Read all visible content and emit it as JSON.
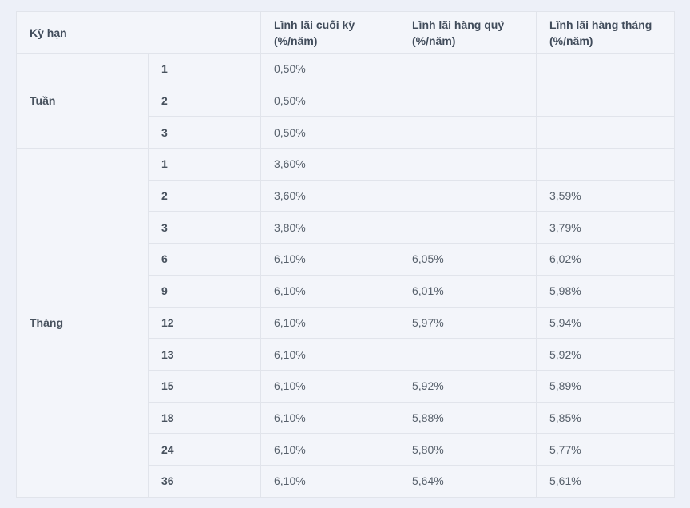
{
  "page": {
    "background_color": "#edf0f8",
    "table_background_color": "#f3f5fa",
    "border_color": "#e1e4eb"
  },
  "table": {
    "header": {
      "term": "Kỳ hạn",
      "end": "Lĩnh lãi cuối kỳ (%/năm)",
      "quarterly": "Lĩnh lãi hàng quý (%/năm)",
      "monthly": "Lĩnh lãi hàng tháng (%/năm)"
    },
    "groups": [
      {
        "label": "Tuần",
        "rows": [
          {
            "period": "1",
            "end": "0,50%",
            "quarterly": "",
            "monthly": ""
          },
          {
            "period": "2",
            "end": "0,50%",
            "quarterly": "",
            "monthly": ""
          },
          {
            "period": "3",
            "end": "0,50%",
            "quarterly": "",
            "monthly": ""
          }
        ]
      },
      {
        "label": "Tháng",
        "rows": [
          {
            "period": "1",
            "end": "3,60%",
            "quarterly": "",
            "monthly": ""
          },
          {
            "period": "2",
            "end": "3,60%",
            "quarterly": "",
            "monthly": "3,59%"
          },
          {
            "period": "3",
            "end": "3,80%",
            "quarterly": "",
            "monthly": "3,79%"
          },
          {
            "period": "6",
            "end": "6,10%",
            "quarterly": "6,05%",
            "monthly": "6,02%"
          },
          {
            "period": "9",
            "end": "6,10%",
            "quarterly": "6,01%",
            "monthly": "5,98%"
          },
          {
            "period": "12",
            "end": "6,10%",
            "quarterly": "5,97%",
            "monthly": "5,94%"
          },
          {
            "period": "13",
            "end": "6,10%",
            "quarterly": "",
            "monthly": "5,92%"
          },
          {
            "period": "15",
            "end": "6,10%",
            "quarterly": "5,92%",
            "monthly": "5,89%"
          },
          {
            "period": "18",
            "end": "6,10%",
            "quarterly": "5,88%",
            "monthly": "5,85%"
          },
          {
            "period": "24",
            "end": "6,10%",
            "quarterly": "5,80%",
            "monthly": "5,77%"
          },
          {
            "period": "36",
            "end": "6,10%",
            "quarterly": "5,64%",
            "monthly": "5,61%"
          }
        ]
      }
    ]
  }
}
